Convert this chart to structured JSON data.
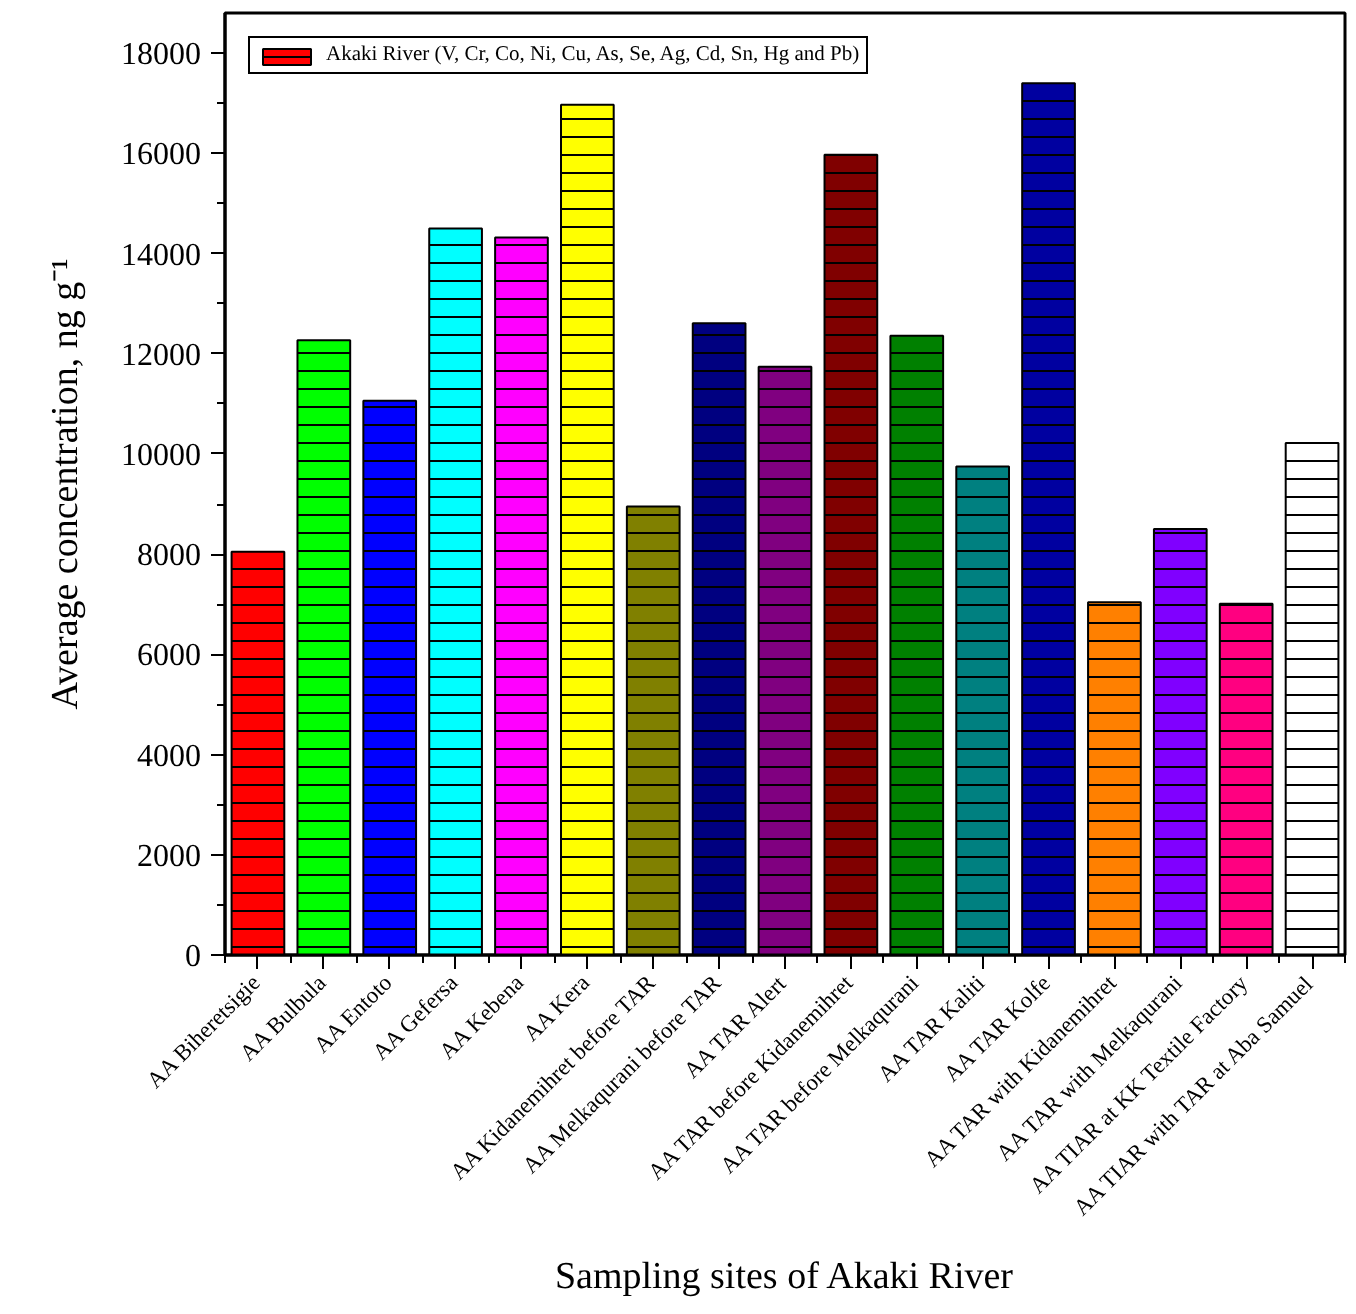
{
  "chart_data": {
    "type": "bar",
    "xlabel": "Sampling sites of Akaki River",
    "ylabel": "Average concentration, ng g⁻¹",
    "categories": [
      "AA Biheretsigie",
      "AA Bulbula",
      "AA Entoto",
      "AA Gefersa",
      "AA Kebena",
      "AA Kera",
      "AA Kidanemihret before TAR",
      "AA Melkaqurani before TAR",
      "AA TAR Alert",
      "AA TAR before Kidanemihret",
      "AA TAR before Melkaqurani",
      "AA TAR Kaliti",
      "AA TAR Kolfe",
      "AA TAR with Kidanemihret",
      "AA TAR with Melkaqurani",
      "AA TIAR at KK Textile Factory",
      "AA TIAR with TAR at Aba Samuel"
    ],
    "ylim": [
      0,
      18800
    ],
    "yticks": [
      0,
      {
        "value": 1000,
        "label": null
      },
      2000,
      {
        "value": 3000,
        "label": null
      },
      4000,
      {
        "value": 5000,
        "label": null
      },
      6000,
      {
        "value": 7000,
        "label": null
      },
      8000,
      {
        "value": 9000,
        "label": null
      },
      10000,
      {
        "value": 11000,
        "label": null
      },
      12000,
      {
        "value": 13000,
        "label": null
      },
      14000,
      {
        "value": 15000,
        "label": null
      },
      16000,
      {
        "value": 17000,
        "label": null
      },
      18000
    ],
    "legend": "top left",
    "series": [
      {
        "name": "Akaki River (V, Cr, Co, Ni, Cu, As, Se, Ag, Cd, Sn, Hg and Pb)",
        "colors": [
          "#ff0000",
          "#00ff00",
          "#0000ff",
          "#00ffff",
          "#ff00ff",
          "#ffff00",
          "#808000",
          "#000080",
          "#800080",
          "#800000",
          "#008000",
          "#008080",
          "#0000a0",
          "#ff8000",
          "#8000ff",
          "#ff0080",
          "#ffffff"
        ],
        "values": [
          8050,
          12270,
          11060,
          14500,
          14320,
          16970,
          8950,
          12610,
          11740,
          15970,
          12360,
          9750,
          17400,
          7040,
          8500,
          7010,
          10220
        ]
      }
    ]
  }
}
